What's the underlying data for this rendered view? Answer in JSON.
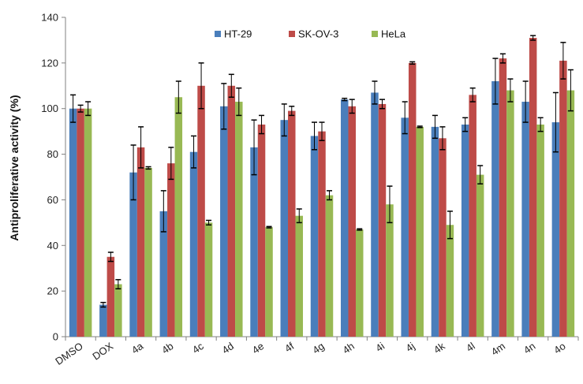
{
  "chart_data": {
    "type": "bar",
    "title": "",
    "xlabel": "",
    "ylabel": "Antiproliferative activity (%)",
    "ylim": [
      0,
      140
    ],
    "yticks": [
      0,
      20,
      40,
      60,
      80,
      100,
      120,
      140
    ],
    "grid": false,
    "legend_position": "top-center",
    "categories": [
      "DMSO",
      "DOX",
      "4a",
      "4b",
      "4c",
      "4d",
      "4e",
      "4f",
      "4g",
      "4h",
      "4i",
      "4j",
      "4k",
      "4l",
      "4m",
      "4n",
      "4o"
    ],
    "series": [
      {
        "name": "HT-29",
        "color": "#4a7ebb",
        "values": [
          100,
          14,
          72,
          55,
          81,
          101,
          83,
          95,
          88,
          104,
          107,
          96,
          92,
          93,
          112,
          103,
          94
        ],
        "errors": [
          6,
          1,
          12,
          9,
          7,
          10,
          12,
          7,
          6,
          0.5,
          5,
          7,
          5,
          3,
          10,
          9,
          13
        ]
      },
      {
        "name": "SK-OV-3",
        "color": "#be4b48",
        "values": [
          100,
          35,
          83,
          76,
          110,
          110,
          93,
          99,
          90,
          101,
          102,
          120,
          87,
          106,
          122,
          131,
          121
        ],
        "errors": [
          1.5,
          2,
          9,
          7,
          10,
          5,
          4,
          2,
          4,
          3,
          2,
          0.5,
          5,
          3,
          2,
          1,
          8
        ]
      },
      {
        "name": "HeLa",
        "color": "#98b954",
        "values": [
          100,
          23,
          74,
          105,
          50,
          103,
          48,
          53,
          62,
          47,
          58,
          92,
          49,
          71,
          108,
          93,
          108
        ],
        "errors": [
          3,
          2,
          0.5,
          7,
          1,
          6,
          0.3,
          3,
          2,
          0.3,
          8,
          0.3,
          6,
          4,
          5,
          3,
          9
        ]
      }
    ]
  }
}
